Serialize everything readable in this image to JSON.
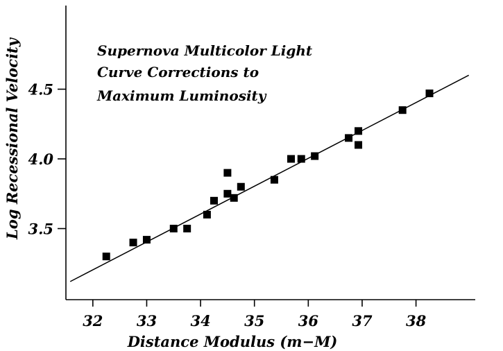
{
  "chart_data": {
    "type": "scatter",
    "title": "",
    "annotation": [
      "Supernova Multicolor Light",
      "Curve Corrections to",
      "Maximum Luminosity"
    ],
    "xlabel": "Distance Modulus (m−M)",
    "ylabel": "Log Recessional Velocity",
    "xlim": [
      31.5,
      39.1
    ],
    "ylim": [
      2.99,
      5.1
    ],
    "x_ticks": [
      32,
      33,
      34,
      35,
      36,
      37,
      38
    ],
    "x_tick_labels": [
      "32",
      "33",
      "34",
      "35",
      "36",
      "37",
      "38"
    ],
    "y_ticks": [
      3.5,
      4.0,
      4.5
    ],
    "y_tick_labels": [
      "3.5",
      "4.0",
      "4.5"
    ],
    "grid": false,
    "legend": "none",
    "marker": "square",
    "point_color": "#000000",
    "x": [
      32.25,
      32.75,
      33.0,
      33.5,
      33.75,
      34.12,
      34.25,
      34.5,
      34.5,
      34.62,
      34.75,
      35.37,
      35.68,
      35.87,
      36.12,
      36.75,
      36.93,
      36.93,
      37.75,
      38.25
    ],
    "y": [
      3.3,
      3.4,
      3.42,
      3.5,
      3.5,
      3.6,
      3.7,
      3.9,
      3.75,
      3.72,
      3.8,
      3.85,
      4.0,
      4.0,
      4.02,
      4.15,
      4.2,
      4.1,
      4.35,
      4.47
    ],
    "fit_line": {
      "x": [
        31.58,
        38.98
      ],
      "y": [
        3.12,
        4.6
      ]
    }
  }
}
